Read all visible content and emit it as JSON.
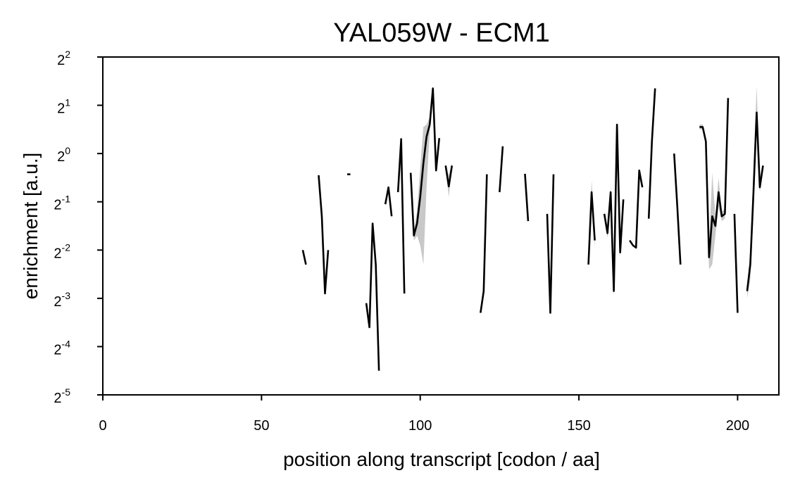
{
  "chart_data": {
    "type": "line",
    "title": "YAL059W - ECM1",
    "xlabel": "position along transcript [codon / aa]",
    "ylabel": "enrichment [a.u.]",
    "xlim": [
      0,
      213
    ],
    "ylim_log2": [
      -5,
      2
    ],
    "y_scale": "log2",
    "x_ticks": [
      "0",
      "50",
      "100",
      "150",
      "200"
    ],
    "y_ticks": [
      {
        "base": "2",
        "exp": "2",
        "value": 2
      },
      {
        "base": "2",
        "exp": "1",
        "value": 1
      },
      {
        "base": "2",
        "exp": "0",
        "value": 0
      },
      {
        "base": "2",
        "exp": "-1",
        "value": -1
      },
      {
        "base": "2",
        "exp": "-2",
        "value": -2
      },
      {
        "base": "2",
        "exp": "-3",
        "value": -3
      },
      {
        "base": "2",
        "exp": "-4",
        "value": -4
      },
      {
        "base": "2",
        "exp": "-5",
        "value": -5
      }
    ],
    "grid": false,
    "line_color": "#000000",
    "band_color": "#c8c8c8",
    "series": [
      {
        "x": [
          63,
          64
        ],
        "log2y": [
          -2.0,
          -2.3
        ]
      },
      {
        "x": [
          68,
          69,
          70,
          71
        ],
        "log2y": [
          -0.45,
          -1.3,
          -2.9,
          -2.0
        ]
      },
      {
        "x": [
          77,
          78
        ],
        "log2y": [
          -0.43,
          -0.43
        ]
      },
      {
        "x": [
          83,
          84,
          85,
          86,
          87
        ],
        "log2y": [
          -3.1,
          -3.6,
          -1.45,
          -2.3,
          -4.5
        ]
      },
      {
        "x": [
          89,
          90,
          91
        ],
        "log2y": [
          -1.05,
          -0.7,
          -1.3
        ]
      },
      {
        "x": [
          93,
          94,
          95
        ],
        "log2y": [
          -0.8,
          0.3,
          -2.9
        ]
      },
      {
        "x": [
          97,
          98,
          99,
          100,
          101,
          102,
          103,
          104,
          105,
          106
        ],
        "log2y": [
          -0.4,
          -1.7,
          -1.45,
          -0.9,
          -0.2,
          0.35,
          0.6,
          1.35,
          -0.35,
          0.32
        ],
        "band_lo": [
          -0.45,
          -1.8,
          -1.7,
          -1.9,
          -2.3,
          -0.7,
          0.45,
          1.3,
          -0.4,
          0.28
        ],
        "band_hi": [
          -0.35,
          -1.6,
          -1.2,
          -0.3,
          0.55,
          0.6,
          0.75,
          1.4,
          -0.3,
          0.36
        ]
      },
      {
        "x": [
          108,
          109,
          110
        ],
        "log2y": [
          -0.25,
          -0.68,
          -0.25
        ],
        "band_lo": [
          -0.3,
          -0.9,
          -0.3
        ],
        "band_hi": [
          -0.2,
          -0.45,
          -0.2
        ]
      },
      {
        "x": [
          119,
          120,
          121
        ],
        "log2y": [
          -3.3,
          -2.85,
          -0.43
        ]
      },
      {
        "x": [
          125,
          126
        ],
        "log2y": [
          -0.8,
          0.15
        ]
      },
      {
        "x": [
          133,
          134
        ],
        "log2y": [
          -0.42,
          -1.4
        ]
      },
      {
        "x": [
          140,
          141,
          142
        ],
        "log2y": [
          -1.25,
          -3.3,
          -0.43
        ]
      },
      {
        "x": [
          153,
          154,
          155
        ],
        "log2y": [
          -2.3,
          -0.8,
          -1.8
        ],
        "band_lo": [
          -2.4,
          -0.95,
          -1.95
        ],
        "band_hi": [
          -2.2,
          -0.55,
          -1.7
        ]
      },
      {
        "x": [
          158,
          159,
          160,
          161,
          162,
          163,
          164
        ],
        "log2y": [
          -1.25,
          -1.65,
          -0.8,
          -2.85,
          0.6,
          -2.05,
          -0.95
        ],
        "band_lo": [
          -1.3,
          -1.75,
          -0.9,
          -2.95,
          0.5,
          -2.15,
          -1.0
        ],
        "band_hi": [
          -1.2,
          -1.55,
          -0.7,
          -2.75,
          0.7,
          -1.95,
          -0.9
        ]
      },
      {
        "x": [
          166,
          167,
          168,
          169,
          170
        ],
        "log2y": [
          -1.8,
          -1.9,
          -1.95,
          -0.35,
          -0.7
        ]
      },
      {
        "x": [
          172,
          173,
          174
        ],
        "log2y": [
          -1.35,
          0.25,
          1.35
        ]
      },
      {
        "x": [
          180,
          181,
          182
        ],
        "log2y": [
          0.0,
          -1.1,
          -2.3
        ]
      },
      {
        "x": [
          188,
          189,
          190,
          191,
          192,
          193,
          194,
          195,
          196,
          197
        ],
        "log2y": [
          0.55,
          0.55,
          0.25,
          -2.15,
          -1.3,
          -1.5,
          -0.8,
          -1.3,
          -1.25,
          1.15
        ],
        "band_lo": [
          0.5,
          0.5,
          0.2,
          -2.4,
          -2.3,
          -1.7,
          -1.1,
          -1.4,
          -1.35,
          1.05
        ],
        "band_hi": [
          0.6,
          0.6,
          0.3,
          -1.9,
          -0.4,
          -1.3,
          -0.5,
          -1.2,
          -1.15,
          1.25
        ]
      },
      {
        "x": [
          199,
          200
        ],
        "log2y": [
          -1.25,
          -3.3
        ]
      },
      {
        "x": [
          203,
          204,
          205,
          206,
          207,
          208
        ],
        "log2y": [
          -2.85,
          -2.3,
          -0.8,
          0.85,
          -0.7,
          -0.25
        ],
        "band_lo": [
          -3.0,
          -2.6,
          -1.3,
          0.5,
          -0.8,
          -0.3
        ],
        "band_hi": [
          -2.7,
          -2.0,
          -0.3,
          1.4,
          -0.6,
          -0.2
        ]
      }
    ]
  }
}
